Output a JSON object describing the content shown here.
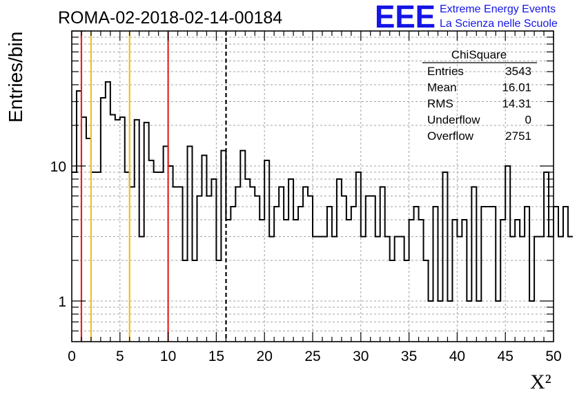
{
  "chart_data": {
    "type": "histogram",
    "title": "ROMA-02-2018-02-14-00184",
    "xlabel": "X²",
    "ylabel": "Entries/bin",
    "xlim": [
      0,
      50
    ],
    "ylim": [
      0.5,
      100
    ],
    "yscale": "log",
    "grid": true,
    "bin_width": 0.5,
    "x_ticks": [
      "0",
      "5",
      "10",
      "15",
      "20",
      "25",
      "30",
      "35",
      "40",
      "45",
      "50"
    ],
    "y_ticks": [
      "1",
      "10"
    ],
    "values": [
      9,
      36,
      23,
      16,
      9,
      9,
      32,
      42,
      24,
      22,
      23,
      9,
      7,
      22,
      3,
      21,
      11,
      9,
      9,
      14,
      10,
      7,
      7,
      2,
      14,
      2,
      6,
      12,
      6,
      8,
      2,
      13,
      4,
      5,
      7,
      13,
      8,
      7,
      6,
      4,
      11,
      3,
      5,
      7,
      4,
      8,
      4,
      5,
      7,
      6,
      3,
      3,
      3,
      5,
      3,
      8,
      6,
      4,
      5,
      9,
      3,
      6,
      6,
      3,
      7,
      3,
      2,
      3,
      3,
      2,
      4,
      5,
      4,
      2,
      1,
      5,
      1,
      9,
      1,
      4,
      3,
      4,
      1,
      7,
      1,
      5,
      5,
      5,
      1,
      4,
      10,
      3,
      4,
      3,
      5,
      1,
      3,
      3,
      9,
      3,
      5,
      3,
      5,
      3
    ],
    "vlines": [
      {
        "x": 1,
        "color": "#e0261e",
        "style": "solid"
      },
      {
        "x": 2,
        "color": "#f0c020",
        "style": "solid"
      },
      {
        "x": 6,
        "color": "#f0c020",
        "style": "solid"
      },
      {
        "x": 10,
        "color": "#e0261e",
        "style": "solid"
      },
      {
        "x": 16.01,
        "color": "#000000",
        "style": "dashed"
      }
    ],
    "stats": {
      "title": "ChiSquare",
      "rows": [
        {
          "label": "Entries",
          "value": "3543"
        },
        {
          "label": "Mean",
          "value": "16.01"
        },
        {
          "label": "RMS",
          "value": "14.31"
        },
        {
          "label": "Underflow",
          "value": "0"
        },
        {
          "label": "Overflow",
          "value": "2751"
        }
      ]
    }
  },
  "logo": {
    "mark": "EEE",
    "line1": "Extreme Energy Events",
    "line2": "La Scienza nelle Scuole",
    "color": "#1515e6"
  }
}
